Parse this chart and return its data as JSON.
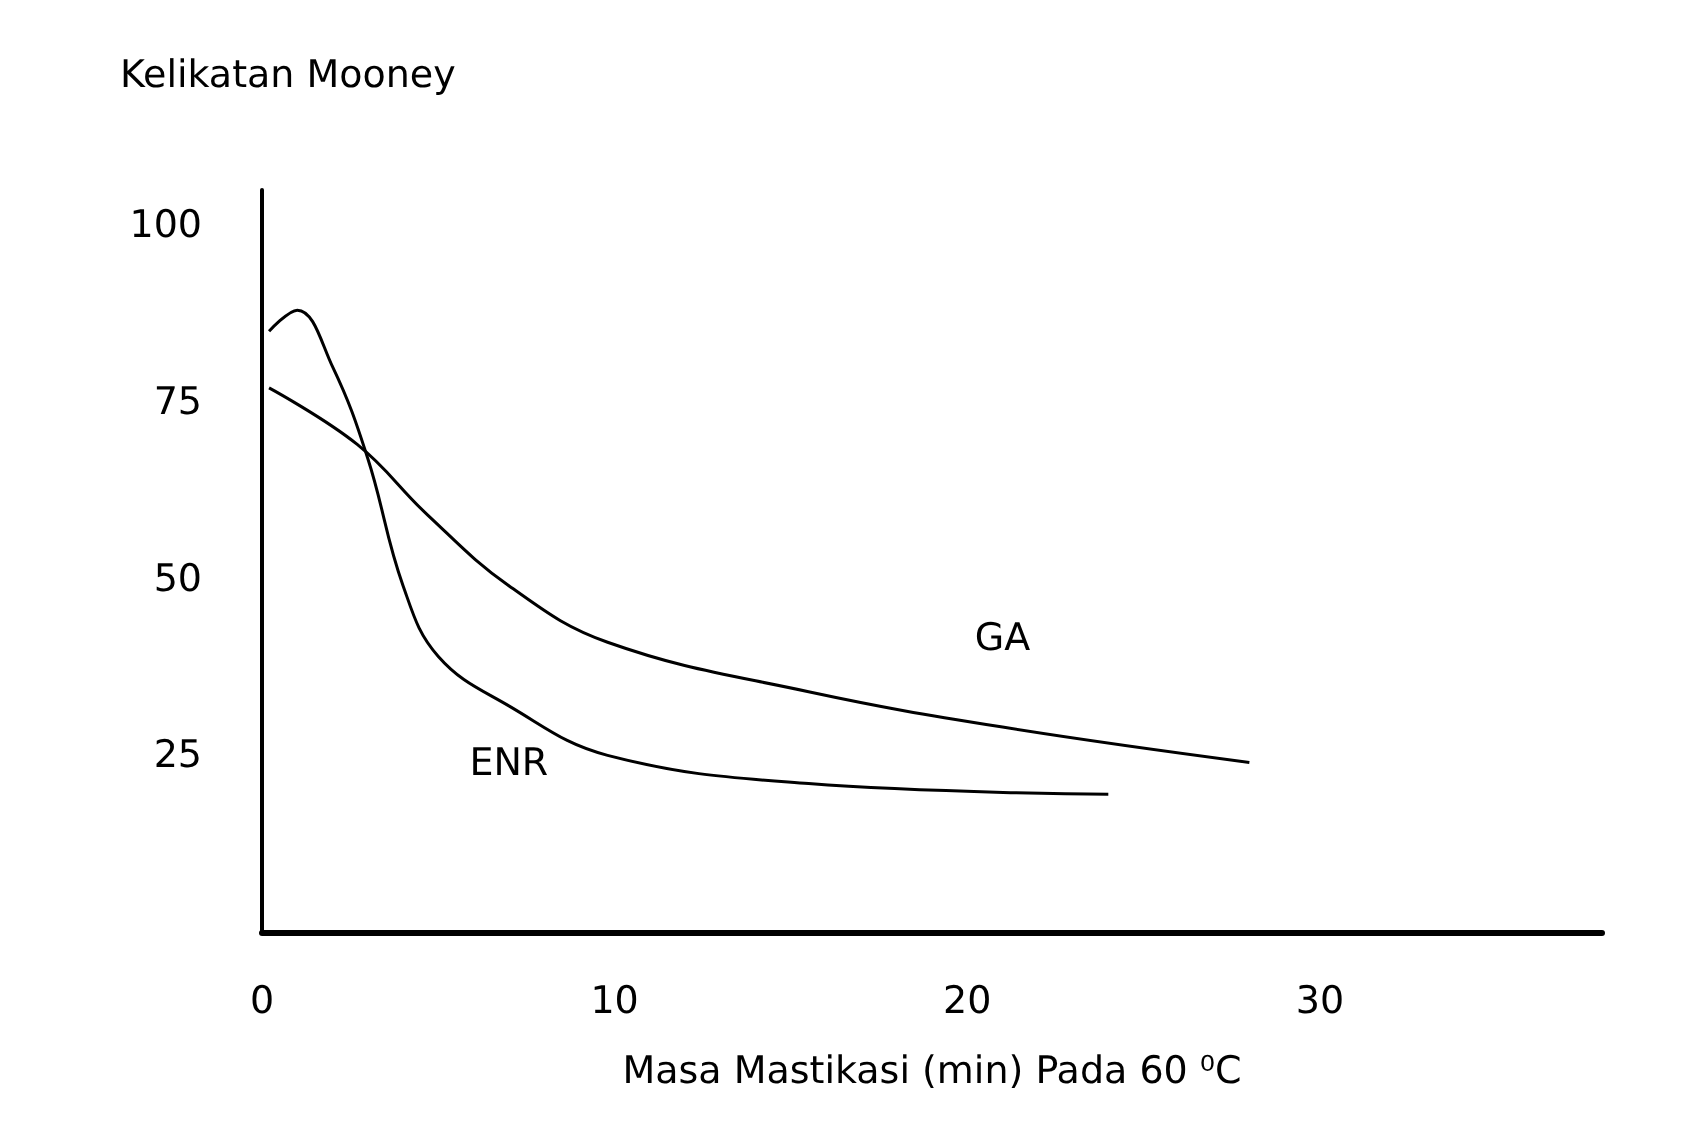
{
  "chart_data": {
    "type": "line",
    "ylabel": "Kelikatan Mooney",
    "xlabel": "Masa Mastikasi (min) Pada 60 ⁰C",
    "xlim": [
      0,
      38
    ],
    "xticks": [
      0,
      10,
      20,
      30
    ],
    "ylim": [
      0,
      105
    ],
    "yticks": [
      25,
      50,
      75,
      100
    ],
    "grid": false,
    "legend": false,
    "marker": "none",
    "line_style": "solid",
    "series": [
      {
        "name": "GA",
        "color": "#000000",
        "x": [
          0.2,
          2.7,
          4.7,
          7,
          9.8,
          15.5,
          21,
          28
        ],
        "values": [
          77,
          69,
          59,
          49,
          41,
          34,
          29,
          24
        ]
      },
      {
        "name": "ENR",
        "color": "#000000",
        "x": [
          0.2,
          1,
          2,
          3,
          4,
          5,
          7,
          9.8,
          15.5,
          24
        ],
        "values": [
          85,
          88,
          80,
          67,
          49,
          39,
          32,
          25,
          21,
          19.5
        ]
      }
    ]
  }
}
